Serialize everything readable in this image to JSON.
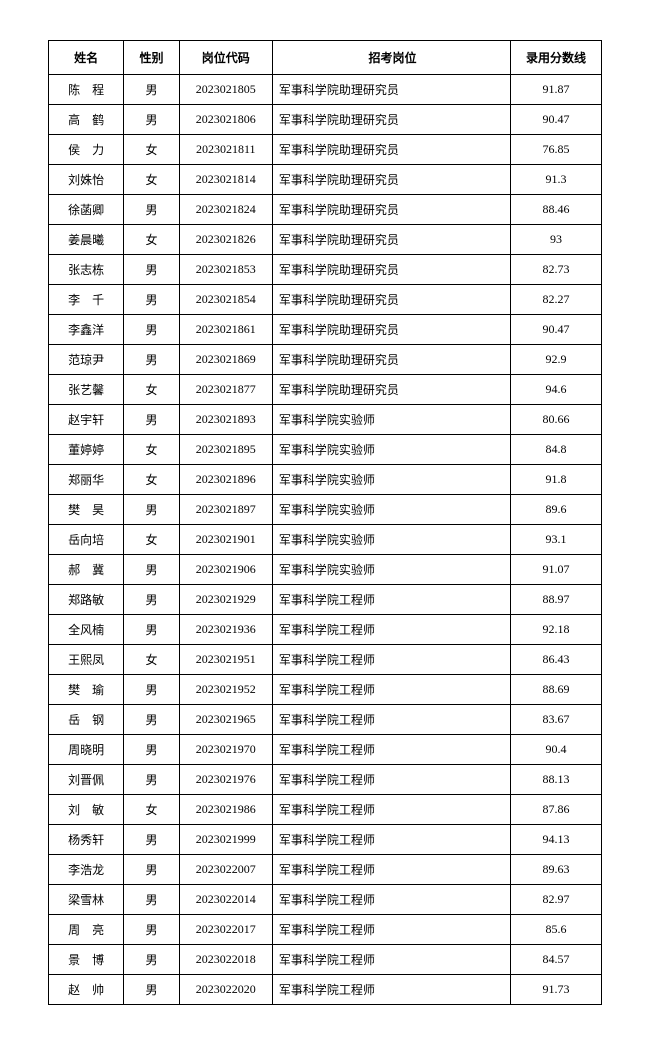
{
  "table": {
    "headers": {
      "name": "姓名",
      "gender": "性别",
      "code": "岗位代码",
      "position": "招考岗位",
      "score": "录用分数线"
    },
    "rows": [
      {
        "name": "陈　程",
        "gender": "男",
        "code": "2023021805",
        "position": "军事科学院助理研究员",
        "score": "91.87"
      },
      {
        "name": "高　鹤",
        "gender": "男",
        "code": "2023021806",
        "position": "军事科学院助理研究员",
        "score": "90.47"
      },
      {
        "name": "侯　力",
        "gender": "女",
        "code": "2023021811",
        "position": "军事科学院助理研究员",
        "score": "76.85"
      },
      {
        "name": "刘姝怡",
        "gender": "女",
        "code": "2023021814",
        "position": "军事科学院助理研究员",
        "score": "91.3"
      },
      {
        "name": "徐菡卿",
        "gender": "男",
        "code": "2023021824",
        "position": "军事科学院助理研究员",
        "score": "88.46"
      },
      {
        "name": "姜晨曦",
        "gender": "女",
        "code": "2023021826",
        "position": "军事科学院助理研究员",
        "score": "93"
      },
      {
        "name": "张志栋",
        "gender": "男",
        "code": "2023021853",
        "position": "军事科学院助理研究员",
        "score": "82.73"
      },
      {
        "name": "李　千",
        "gender": "男",
        "code": "2023021854",
        "position": "军事科学院助理研究员",
        "score": "82.27"
      },
      {
        "name": "李鑫洋",
        "gender": "男",
        "code": "2023021861",
        "position": "军事科学院助理研究员",
        "score": "90.47"
      },
      {
        "name": "范琼尹",
        "gender": "男",
        "code": "2023021869",
        "position": "军事科学院助理研究员",
        "score": "92.9"
      },
      {
        "name": "张艺馨",
        "gender": "女",
        "code": "2023021877",
        "position": "军事科学院助理研究员",
        "score": "94.6"
      },
      {
        "name": "赵宇轩",
        "gender": "男",
        "code": "2023021893",
        "position": "军事科学院实验师",
        "score": "80.66"
      },
      {
        "name": "董婷婷",
        "gender": "女",
        "code": "2023021895",
        "position": "军事科学院实验师",
        "score": "84.8"
      },
      {
        "name": "郑丽华",
        "gender": "女",
        "code": "2023021896",
        "position": "军事科学院实验师",
        "score": "91.8"
      },
      {
        "name": "樊　昊",
        "gender": "男",
        "code": "2023021897",
        "position": "军事科学院实验师",
        "score": "89.6"
      },
      {
        "name": "岳向培",
        "gender": "女",
        "code": "2023021901",
        "position": "军事科学院实验师",
        "score": "93.1"
      },
      {
        "name": "郝　冀",
        "gender": "男",
        "code": "2023021906",
        "position": "军事科学院实验师",
        "score": "91.07"
      },
      {
        "name": "郑路敏",
        "gender": "男",
        "code": "2023021929",
        "position": "军事科学院工程师",
        "score": "88.97"
      },
      {
        "name": "全风楠",
        "gender": "男",
        "code": "2023021936",
        "position": "军事科学院工程师",
        "score": "92.18"
      },
      {
        "name": "王熙凤",
        "gender": "女",
        "code": "2023021951",
        "position": "军事科学院工程师",
        "score": "86.43"
      },
      {
        "name": "樊　瑜",
        "gender": "男",
        "code": "2023021952",
        "position": "军事科学院工程师",
        "score": "88.69"
      },
      {
        "name": "岳　钢",
        "gender": "男",
        "code": "2023021965",
        "position": "军事科学院工程师",
        "score": "83.67"
      },
      {
        "name": "周晓明",
        "gender": "男",
        "code": "2023021970",
        "position": "军事科学院工程师",
        "score": "90.4"
      },
      {
        "name": "刘晋佩",
        "gender": "男",
        "code": "2023021976",
        "position": "军事科学院工程师",
        "score": "88.13"
      },
      {
        "name": "刘　敏",
        "gender": "女",
        "code": "2023021986",
        "position": "军事科学院工程师",
        "score": "87.86"
      },
      {
        "name": "杨秀轩",
        "gender": "男",
        "code": "2023021999",
        "position": "军事科学院工程师",
        "score": "94.13"
      },
      {
        "name": "李浩龙",
        "gender": "男",
        "code": "2023022007",
        "position": "军事科学院工程师",
        "score": "89.63"
      },
      {
        "name": "梁雪林",
        "gender": "男",
        "code": "2023022014",
        "position": "军事科学院工程师",
        "score": "82.97"
      },
      {
        "name": "周　亮",
        "gender": "男",
        "code": "2023022017",
        "position": "军事科学院工程师",
        "score": "85.6"
      },
      {
        "name": "景　博",
        "gender": "男",
        "code": "2023022018",
        "position": "军事科学院工程师",
        "score": "84.57"
      },
      {
        "name": "赵　帅",
        "gender": "男",
        "code": "2023022020",
        "position": "军事科学院工程师",
        "score": "91.73"
      }
    ]
  }
}
